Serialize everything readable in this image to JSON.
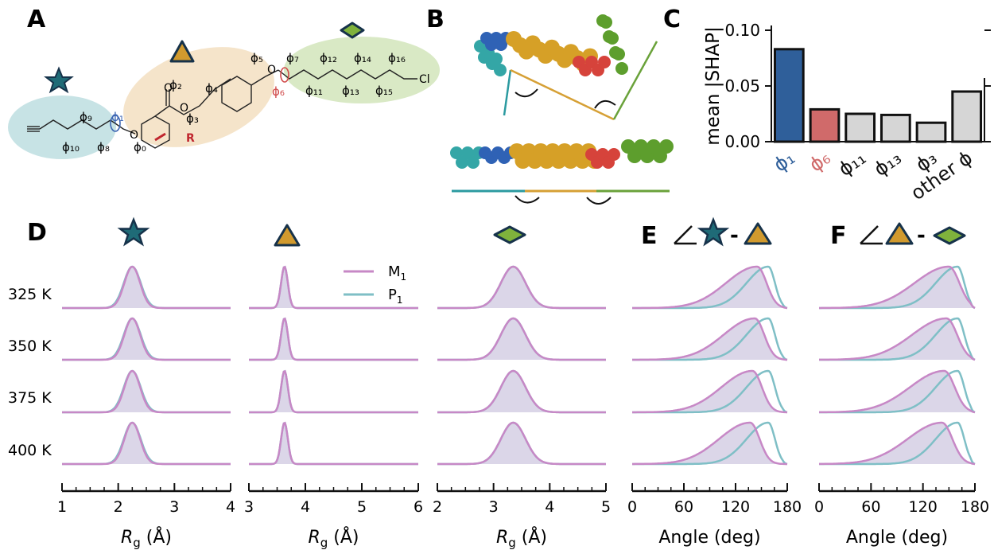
{
  "colors": {
    "teal": "#7fbfc6",
    "magenta": "#c788c6",
    "fill": "#cfc8e0",
    "blue": "#2f5f9a",
    "red": "#d06a6a",
    "gray": "#d6d6d6",
    "star": "#1f6b77",
    "triangle": "#d19a2e",
    "diamond": "#7fb23c",
    "dark": "#16324a"
  },
  "panels": {
    "A": "A",
    "B": "B",
    "C": "C",
    "D": "D",
    "E_letter": "E",
    "F_letter": "F"
  },
  "molecule": {
    "labels": [
      "ϕ₁",
      "ϕ₆",
      "ϕ₉",
      "ϕ₁₀",
      "ϕ₈",
      "ϕ₀",
      "ϕ₂",
      "ϕ₃",
      "ϕ₄",
      "ϕ₅",
      "ϕ₇",
      "ϕ₁₂",
      "ϕ₁₄",
      "ϕ₁₆",
      "ϕ₁₁",
      "ϕ₁₃",
      "ϕ₁₅"
    ],
    "atoms": {
      "O": "O",
      "R": "R",
      "Cl": "Cl"
    }
  },
  "legend": {
    "m1": "M",
    "m1_sub": "1",
    "p1": "P",
    "p1_sub": "1"
  },
  "temps": [
    "325 K",
    "350 K",
    "375 K",
    "400 K"
  ],
  "chart_data": [
    {
      "type": "bar",
      "panel": "C",
      "ylabel": "mean |SHAP|",
      "categories": [
        "ϕ₁",
        "ϕ₆",
        "ϕ₁₁",
        "ϕ₁₃",
        "ϕ₃",
        "other ϕ"
      ],
      "values": [
        0.083,
        0.029,
        0.025,
        0.024,
        0.017,
        0.045
      ],
      "ylim": [
        0,
        0.1
      ],
      "yticks": [
        "0.00",
        "0.05",
        "0.10"
      ],
      "bar_colors": [
        "#2f5f9a",
        "#d06a6a",
        "#d6d6d6",
        "#d6d6d6",
        "#d6d6d6",
        "#d6d6d6"
      ]
    },
    {
      "type": "line",
      "panel": "D-star",
      "xlabel": "R_g (Å)",
      "xlim": [
        1,
        4
      ],
      "xticks": [
        "1",
        "2",
        "3",
        "4"
      ],
      "series": [
        {
          "name": "M₁",
          "peak": 2.25,
          "width": 0.14,
          "skew": 0
        },
        {
          "name": "P₁",
          "peak": 2.25,
          "width": 0.15,
          "skew": 0
        }
      ]
    },
    {
      "type": "line",
      "panel": "D-triangle",
      "xlabel": "R_g (Å)",
      "xlim": [
        3,
        6
      ],
      "xticks": [
        "3",
        "4",
        "5",
        "6"
      ],
      "series": [
        {
          "name": "M₁",
          "peak": 3.63,
          "width": 0.06,
          "skew": 0
        },
        {
          "name": "P₁",
          "peak": 3.63,
          "width": 0.06,
          "skew": 0
        }
      ]
    },
    {
      "type": "line",
      "panel": "D-diamond",
      "xlabel": "R_g (Å)",
      "xlim": [
        2,
        5
      ],
      "xticks": [
        "2",
        "3",
        "4",
        "5"
      ],
      "series": [
        {
          "name": "M₁",
          "peak": 3.35,
          "width": 0.22,
          "skew": 0
        },
        {
          "name": "P₁",
          "peak": 3.35,
          "width": 0.22,
          "skew": 0
        }
      ]
    },
    {
      "type": "line",
      "panel": "E",
      "xlabel": "Angle (deg)",
      "xlim": [
        0,
        180
      ],
      "xticks": [
        "0",
        "60",
        "120",
        "180"
      ],
      "series": [
        {
          "name": "M₁",
          "peak": 145,
          "width": 20,
          "skew": 1
        },
        {
          "name": "P₁",
          "peak": 158,
          "width": 14,
          "skew": 1
        }
      ]
    },
    {
      "type": "line",
      "panel": "F",
      "xlabel": "Angle (deg)",
      "xlim": [
        0,
        180
      ],
      "xticks": [
        "0",
        "60",
        "120",
        "180"
      ],
      "series": [
        {
          "name": "M₁",
          "peak": 150,
          "width": 22,
          "skew": 1
        },
        {
          "name": "P₁",
          "peak": 160,
          "width": 14,
          "skew": 1
        }
      ]
    }
  ]
}
